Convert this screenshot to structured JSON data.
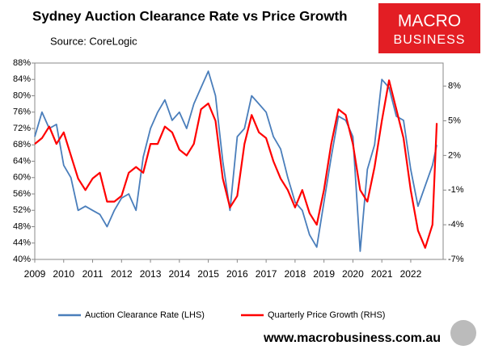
{
  "chart_data": {
    "type": "line",
    "title": "Sydney Auction Clearance Rate vs Price Growth",
    "source": "Source: CoreLogic",
    "logo": [
      "MACRO",
      "BUSINESS"
    ],
    "website": "www.macrobusiness.com.au",
    "x": [
      2009,
      2009.25,
      2009.5,
      2009.75,
      2010,
      2010.25,
      2010.5,
      2010.75,
      2011,
      2011.25,
      2011.5,
      2011.75,
      2012,
      2012.25,
      2012.5,
      2012.75,
      2013,
      2013.25,
      2013.5,
      2013.75,
      2014,
      2014.25,
      2014.5,
      2014.75,
      2015,
      2015.25,
      2015.5,
      2015.75,
      2016,
      2016.25,
      2016.5,
      2016.75,
      2017,
      2017.25,
      2017.5,
      2017.75,
      2018,
      2018.25,
      2018.5,
      2018.75,
      2019,
      2019.25,
      2019.5,
      2019.75,
      2020,
      2020.25,
      2020.5,
      2020.75,
      2021,
      2021.25,
      2021.5,
      2021.75,
      2022,
      2022.25,
      2022.5,
      2022.75,
      2022.9
    ],
    "series": [
      {
        "name": "Auction Clearance Rate (LHS)",
        "color": "#4a7ebb",
        "values": [
          70,
          76,
          72,
          73,
          63,
          60,
          52,
          53,
          52,
          51,
          48,
          52,
          55,
          56,
          52,
          65,
          72,
          76,
          79,
          74,
          76,
          72,
          78,
          82,
          86,
          80,
          64,
          52,
          70,
          72,
          80,
          78,
          76,
          70,
          67,
          60,
          54,
          52,
          46,
          43,
          54,
          65,
          75,
          74,
          70,
          42,
          62,
          68,
          84,
          82,
          75,
          74,
          62,
          53,
          58,
          63,
          68
        ]
      },
      {
        "name": "Quarterly Price Growth (RHS)",
        "color": "#ff0000",
        "axis": "y2",
        "values": [
          3,
          3.5,
          4.5,
          3,
          4,
          2,
          0,
          -1,
          0,
          0.5,
          -2,
          -2,
          -1.5,
          0.5,
          1,
          0.5,
          3,
          3,
          4.5,
          4,
          2.5,
          2,
          3,
          6,
          6.5,
          5,
          0,
          -2.5,
          -1.5,
          3,
          5.5,
          4,
          3.5,
          1.5,
          0,
          -1,
          -2.5,
          -1,
          -3,
          -4,
          -1,
          3,
          6,
          5.5,
          3,
          -1,
          -2,
          1,
          5,
          8.5,
          6,
          3.5,
          -1,
          -4.5,
          -6,
          -4,
          4.8
        ]
      }
    ],
    "xlim": [
      2009,
      2023.12
    ],
    "xticks": [
      2009,
      2010,
      2011,
      2012,
      2013,
      2014,
      2015,
      2016,
      2017,
      2018,
      2019,
      2020,
      2021,
      2022
    ],
    "ylim": [
      40,
      88
    ],
    "yticks": [
      {
        "value": 40,
        "label": "40%"
      },
      {
        "value": 44,
        "label": "44%"
      },
      {
        "value": 48,
        "label": "48%"
      },
      {
        "value": 52,
        "label": "52%"
      },
      {
        "value": 56,
        "label": "56%"
      },
      {
        "value": 60,
        "label": "60%"
      },
      {
        "value": 64,
        "label": "64%"
      },
      {
        "value": 68,
        "label": "68%"
      },
      {
        "value": 72,
        "label": "72%"
      },
      {
        "value": 76,
        "label": "76%"
      },
      {
        "value": 80,
        "label": "80%"
      },
      {
        "value": 84,
        "label": "84%"
      },
      {
        "value": 88,
        "label": "88%"
      }
    ],
    "y2lim": [
      -7,
      10
    ],
    "y2ticks": [
      {
        "value": -7,
        "label": "-7%"
      },
      {
        "value": -4,
        "label": "-4%"
      },
      {
        "value": -1,
        "label": "-1%"
      },
      {
        "value": 2,
        "label": "2%"
      },
      {
        "value": 5,
        "label": "5%"
      },
      {
        "value": 8,
        "label": "8%"
      }
    ],
    "grid": false
  }
}
